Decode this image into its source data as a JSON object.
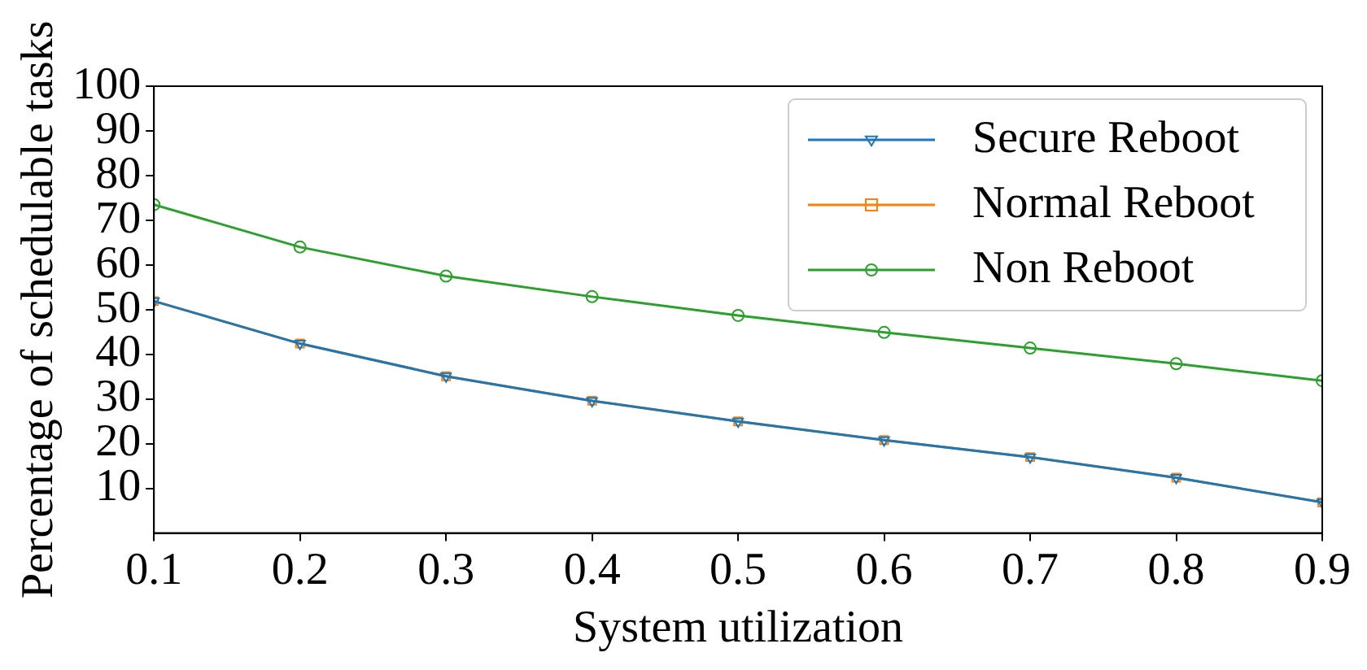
{
  "chart_data": {
    "type": "line",
    "xlabel": "System utilization",
    "ylabel": "Percentage of schedulable tasks",
    "x": [
      0.1,
      0.2,
      0.3,
      0.4,
      0.5,
      0.6,
      0.7,
      0.8,
      0.9
    ],
    "series": [
      {
        "name": "Secure Reboot",
        "color": "#1f77b4",
        "marker": "triangle",
        "values": [
          51.9,
          42.4,
          35.1,
          29.6,
          25.0,
          20.8,
          17.0,
          12.4,
          6.9
        ]
      },
      {
        "name": "Normal Reboot",
        "color": "#ff7f0e",
        "marker": "square",
        "values": [
          51.9,
          42.4,
          35.1,
          29.6,
          25.0,
          20.8,
          17.0,
          12.4,
          6.9
        ]
      },
      {
        "name": "Non Reboot",
        "color": "#2ca02c",
        "marker": "circle",
        "values": [
          73.5,
          64.0,
          57.5,
          52.9,
          48.7,
          44.9,
          41.4,
          37.9,
          34.1
        ]
      }
    ],
    "xlim": [
      0.1,
      0.9
    ],
    "xticks": [
      0.1,
      0.2,
      0.3,
      0.4,
      0.5,
      0.6,
      0.7,
      0.8,
      0.9
    ],
    "ylim": [
      0,
      100
    ],
    "yticks": [
      10,
      20,
      30,
      40,
      50,
      60,
      70,
      80,
      90,
      100
    ],
    "grid": false,
    "legend": "top right"
  }
}
